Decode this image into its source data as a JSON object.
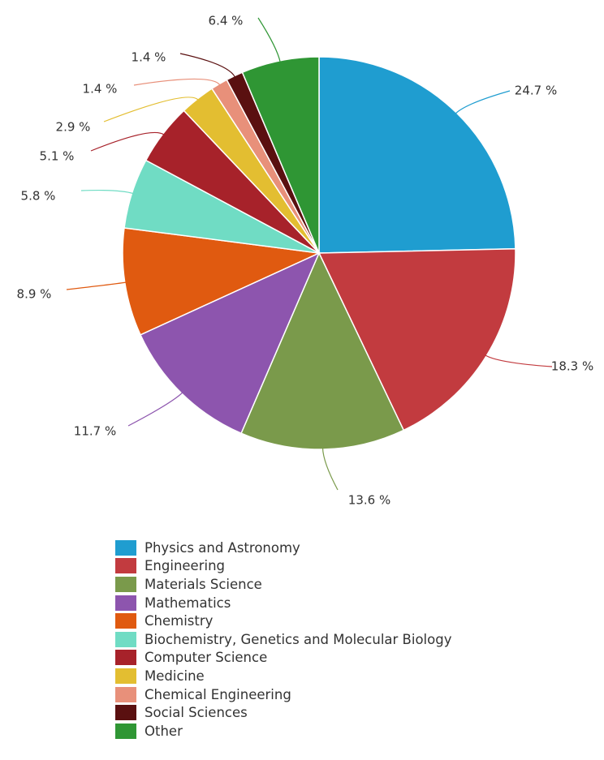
{
  "chart_data": {
    "type": "pie",
    "title": "",
    "categories": [
      "Physics and Astronomy",
      "Engineering",
      "Materials Science",
      "Mathematics",
      "Chemistry",
      "Biochemistry, Genetics and Molecular Biology",
      "Computer Science",
      "Medicine",
      "Chemical Engineering",
      "Social Sciences",
      "Other"
    ],
    "values": [
      24.7,
      18.3,
      13.6,
      11.7,
      8.9,
      5.8,
      5.1,
      2.9,
      1.4,
      1.4,
      6.4
    ],
    "data_labels": [
      "24.7 %",
      "18.3 %",
      "13.6 %",
      "11.7 %",
      "8.9 %",
      "5.8 %",
      "5.1 %",
      "2.9 %",
      "1.4 %",
      "1.4 %",
      "6.4 %"
    ],
    "colors": [
      "#1f9dd0",
      "#c23b3f",
      "#7a9a4b",
      "#8d55ae",
      "#e05a10",
      "#70dcc4",
      "#a7222a",
      "#e3be31",
      "#e8907a",
      "#5a1010",
      "#2f9634"
    ],
    "legend_position": "bottom-left",
    "start_angle_deg": 0,
    "direction": "clockwise"
  }
}
